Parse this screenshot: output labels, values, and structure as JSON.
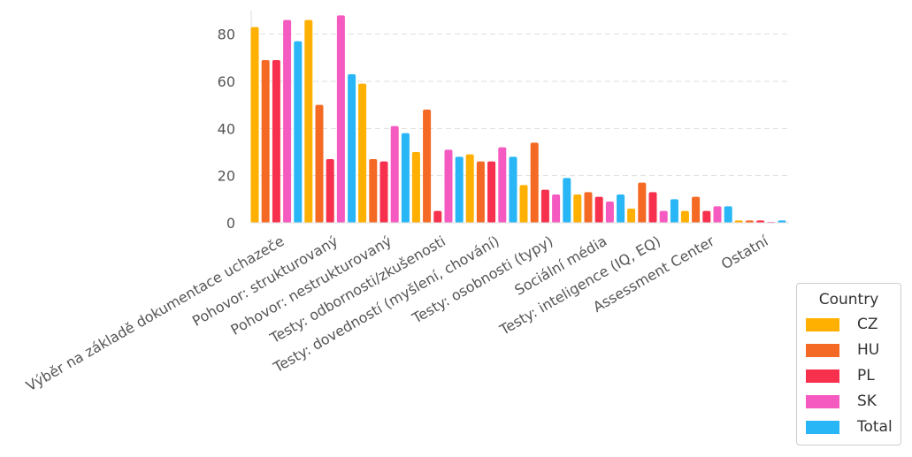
{
  "chart_data": {
    "type": "bar",
    "categories": [
      "Výběr na základě dokumentace uchazeče",
      "Pohovor: strukturovaný",
      "Pohovor: nestrukturovaný",
      "Testy: odbornosti/zkušenosti",
      "Testy: dovedností (myšlení, chování)",
      "Testy: osobnosti (typy)",
      "Sociální média",
      "Testy: inteligence (IQ, EQ)",
      "Assessment Center",
      "Ostatní"
    ],
    "series": [
      {
        "name": "CZ",
        "color": "#FFB000",
        "values": [
          83,
          86,
          59,
          30,
          29,
          16,
          12,
          6,
          5,
          1
        ]
      },
      {
        "name": "HU",
        "color": "#F46A24",
        "values": [
          69,
          50,
          27,
          48,
          26,
          34,
          13,
          17,
          11,
          1
        ]
      },
      {
        "name": "PL",
        "color": "#F7304E",
        "values": [
          69,
          27,
          26,
          5,
          26,
          14,
          11,
          13,
          5,
          1
        ]
      },
      {
        "name": "SK",
        "color": "#F55AC0",
        "values": [
          86,
          88,
          41,
          31,
          32,
          12,
          9,
          5,
          7,
          0
        ]
      },
      {
        "name": "Total",
        "color": "#28B6F6",
        "values": [
          77,
          63,
          38,
          28,
          28,
          19,
          12,
          10,
          7,
          1
        ]
      }
    ],
    "yticks": [
      0,
      20,
      40,
      60,
      80
    ],
    "ylim": [
      0,
      90
    ],
    "grid": "horizontal dashed",
    "legend_title": "Country",
    "legend_position": "bottom-right"
  }
}
